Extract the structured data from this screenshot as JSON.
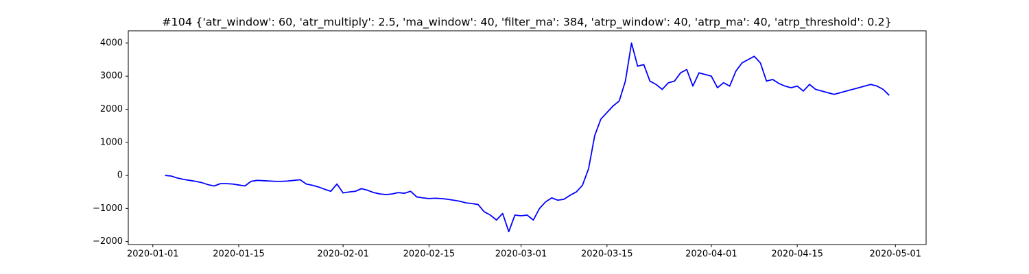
{
  "chart_data": {
    "type": "line",
    "title": "#104 {'atr_window': 60, 'atr_multiply': 2.5, 'ma_window': 40, 'filter_ma': 384, 'atrp_window': 40, 'atrp_ma': 40, 'atrp_threshold': 0.2}",
    "color": "#0000ff",
    "xlim": [
      "2019-12-28",
      "2020-05-06"
    ],
    "xticks": [
      "2020-01-01",
      "2020-01-15",
      "2020-02-01",
      "2020-02-15",
      "2020-03-01",
      "2020-03-15",
      "2020-04-01",
      "2020-04-15",
      "2020-05-01"
    ],
    "ylim": [
      -2090,
      4370
    ],
    "yticks": [
      {
        "value": -2000,
        "label": "−2000"
      },
      {
        "value": -1000,
        "label": "−1000"
      },
      0,
      1000,
      2000,
      3000,
      4000
    ],
    "x": [
      "2020-01-03",
      "2020-01-04",
      "2020-01-05",
      "2020-01-06",
      "2020-01-07",
      "2020-01-08",
      "2020-01-09",
      "2020-01-10",
      "2020-01-11",
      "2020-01-12",
      "2020-01-13",
      "2020-01-14",
      "2020-01-15",
      "2020-01-16",
      "2020-01-17",
      "2020-01-18",
      "2020-01-19",
      "2020-01-20",
      "2020-01-21",
      "2020-01-22",
      "2020-01-23",
      "2020-01-24",
      "2020-01-25",
      "2020-01-26",
      "2020-01-27",
      "2020-01-28",
      "2020-01-29",
      "2020-01-30",
      "2020-01-31",
      "2020-02-01",
      "2020-02-02",
      "2020-02-03",
      "2020-02-04",
      "2020-02-05",
      "2020-02-06",
      "2020-02-07",
      "2020-02-08",
      "2020-02-09",
      "2020-02-10",
      "2020-02-11",
      "2020-02-12",
      "2020-02-13",
      "2020-02-14",
      "2020-02-15",
      "2020-02-16",
      "2020-02-17",
      "2020-02-18",
      "2020-02-19",
      "2020-02-20",
      "2020-02-21",
      "2020-02-22",
      "2020-02-23",
      "2020-02-24",
      "2020-02-25",
      "2020-02-26",
      "2020-02-27",
      "2020-02-28",
      "2020-02-29",
      "2020-03-01",
      "2020-03-02",
      "2020-03-03",
      "2020-03-04",
      "2020-03-05",
      "2020-03-06",
      "2020-03-07",
      "2020-03-08",
      "2020-03-09",
      "2020-03-10",
      "2020-03-11",
      "2020-03-12",
      "2020-03-13",
      "2020-03-14",
      "2020-03-15",
      "2020-03-16",
      "2020-03-17",
      "2020-03-18",
      "2020-03-19",
      "2020-03-20",
      "2020-03-21",
      "2020-03-22",
      "2020-03-23",
      "2020-03-24",
      "2020-03-25",
      "2020-03-26",
      "2020-03-27",
      "2020-03-28",
      "2020-03-29",
      "2020-03-30",
      "2020-03-31",
      "2020-04-01",
      "2020-04-02",
      "2020-04-03",
      "2020-04-04",
      "2020-04-05",
      "2020-04-06",
      "2020-04-07",
      "2020-04-08",
      "2020-04-09",
      "2020-04-10",
      "2020-04-11",
      "2020-04-12",
      "2020-04-13",
      "2020-04-14",
      "2020-04-15",
      "2020-04-16",
      "2020-04-17",
      "2020-04-18",
      "2020-04-19",
      "2020-04-20",
      "2020-04-21",
      "2020-04-22",
      "2020-04-23",
      "2020-04-24",
      "2020-04-25",
      "2020-04-26",
      "2020-04-27",
      "2020-04-28",
      "2020-04-29",
      "2020-04-30"
    ],
    "values": [
      0,
      -20,
      -80,
      -120,
      -150,
      -180,
      -220,
      -280,
      -320,
      -250,
      -250,
      -260,
      -290,
      -320,
      -180,
      -150,
      -160,
      -170,
      -180,
      -180,
      -170,
      -150,
      -130,
      -260,
      -300,
      -350,
      -420,
      -480,
      -260,
      -530,
      -500,
      -480,
      -400,
      -450,
      -520,
      -560,
      -580,
      -560,
      -520,
      -540,
      -480,
      -650,
      -680,
      -700,
      -690,
      -700,
      -720,
      -750,
      -780,
      -830,
      -850,
      -880,
      -1100,
      -1200,
      -1350,
      -1150,
      -1700,
      -1200,
      -1220,
      -1200,
      -1350,
      -1000,
      -800,
      -680,
      -750,
      -720,
      -600,
      -500,
      -300,
      200,
      1200,
      1700,
      1900,
      2100,
      2250,
      2850,
      4000,
      3300,
      3350,
      2850,
      2750,
      2600,
      2800,
      2850,
      3100,
      3200,
      2700,
      3100,
      3050,
      3000,
      2650,
      2800,
      2700,
      3150,
      3400,
      3500,
      3600,
      3400,
      2850,
      2900,
      2780,
      2700,
      2650,
      2700,
      2550,
      2750,
      2600,
      2550,
      2500,
      2450,
      2500,
      2550,
      2600,
      2650,
      2700,
      2750,
      2700,
      2600,
      2420
    ]
  }
}
